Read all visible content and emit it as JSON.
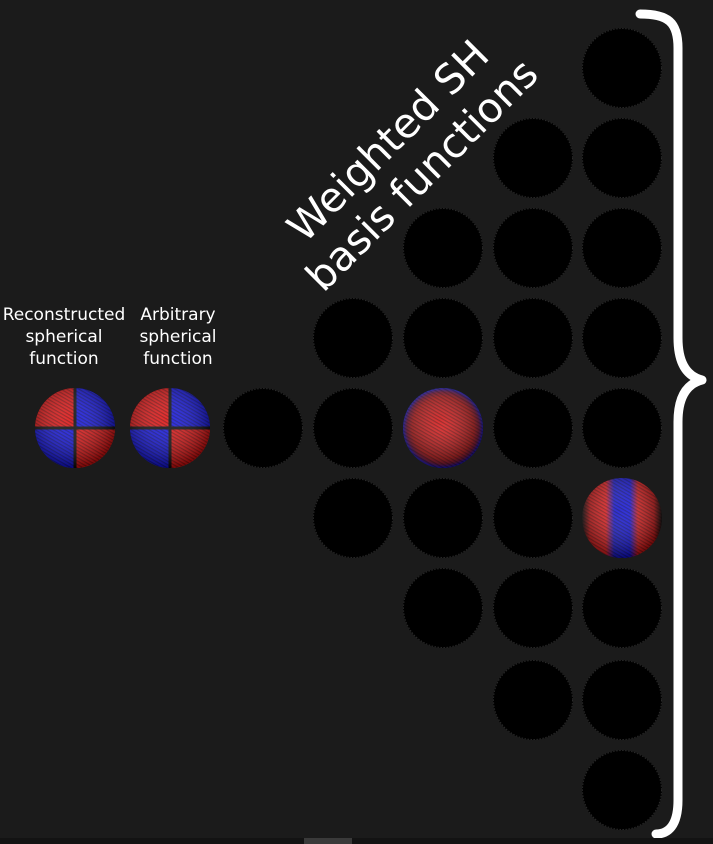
{
  "labels": {
    "reconstructed": "Reconstructed\nspherical\nfunction",
    "arbitrary": "Arbitrary\nspherical\nfunction",
    "sh_title": "Weighted SH\nbasis functions"
  },
  "colors": {
    "background": "#1b1b1b",
    "positive_lobe": "#e01010",
    "negative_lobe": "#1010e0",
    "zero_weight": "#000000",
    "brace": "#ffffff"
  },
  "spheres": [
    {
      "name": "reconstructed-sphere",
      "type": "quadrant"
    },
    {
      "name": "arbitrary-sphere",
      "type": "quadrant"
    },
    {
      "name": "sh-l0-m0",
      "type": "black"
    },
    {
      "name": "sh-l1-m-1",
      "type": "black"
    },
    {
      "name": "sh-l1-m0",
      "type": "black"
    },
    {
      "name": "sh-l1-m1",
      "type": "black"
    },
    {
      "name": "sh-l2-m-2",
      "type": "black"
    },
    {
      "name": "sh-l2-m-1",
      "type": "black"
    },
    {
      "name": "sh-l2-m0",
      "type": "red-ring"
    },
    {
      "name": "sh-l2-m1",
      "type": "black"
    },
    {
      "name": "sh-l2-m2",
      "type": "black"
    },
    {
      "name": "sh-l3-m-3",
      "type": "black"
    },
    {
      "name": "sh-l3-m-2",
      "type": "black"
    },
    {
      "name": "sh-l3-m-1",
      "type": "black"
    },
    {
      "name": "sh-l3-m0",
      "type": "black"
    },
    {
      "name": "sh-l3-m1",
      "type": "black"
    },
    {
      "name": "sh-l3-m2",
      "type": "black"
    },
    {
      "name": "sh-l3-m3",
      "type": "black"
    },
    {
      "name": "sh-l4-m-4",
      "type": "black"
    },
    {
      "name": "sh-l4-m-3",
      "type": "black"
    },
    {
      "name": "sh-l4-m-2",
      "type": "black"
    },
    {
      "name": "sh-l4-m-1",
      "type": "black"
    },
    {
      "name": "sh-l4-m0",
      "type": "black"
    },
    {
      "name": "sh-l4-m1",
      "type": "red-blue-stripe"
    },
    {
      "name": "sh-l4-m2",
      "type": "black"
    },
    {
      "name": "sh-l4-m3",
      "type": "black"
    },
    {
      "name": "sh-l4-m4",
      "type": "black"
    }
  ]
}
